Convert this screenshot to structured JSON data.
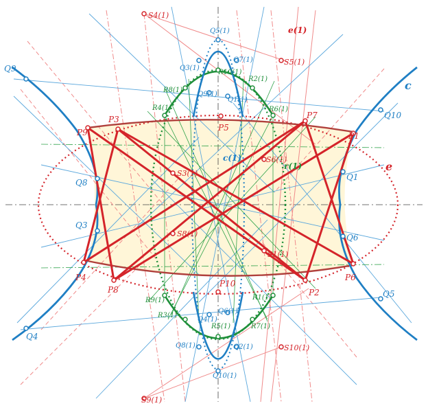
{
  "diagram": {
    "colors": {
      "red": "#d4242a",
      "red_light": "#f08a8a",
      "blue": "#1f7fc4",
      "blue_light": "#5aa7dc",
      "green": "#1f8f3a",
      "fill": "#fff6d8"
    },
    "labels": {
      "curve_c": "c",
      "curve_e": "e",
      "curve_c1": "c(1)",
      "curve_r1": "r(1)",
      "curve_e1": "e(1)",
      "P": [
        "P1",
        "P2",
        "P3",
        "P4",
        "P5",
        "P6",
        "P7",
        "P8",
        "P9",
        "P10"
      ],
      "Q": [
        "Q1",
        "Q3",
        "Q4",
        "Q5",
        "Q6",
        "Q8",
        "Q9",
        "Q10"
      ],
      "Q1_sup": [
        "Q1(1)",
        "Q2(1)",
        "Q3(1)",
        "Q4(1)",
        "Q5(1)",
        "Q6(1)",
        "Q7(1)",
        "Q8(1)",
        "Q9(1)",
        "Q10(1)"
      ],
      "R1_sup": [
        "R1(1)",
        "R2(1)",
        "R3(1)",
        "R4(1)",
        "R5(1)",
        "R6(1)",
        "R7(1)",
        "R8(1)",
        "R9(1)",
        "R10(1)"
      ],
      "S1_sup": [
        "S1(1)",
        "S3(1)",
        "S4(1)",
        "S5(1)",
        "S6(1)",
        "S8(1)",
        "S9(1)",
        "S10(1)"
      ]
    }
  }
}
